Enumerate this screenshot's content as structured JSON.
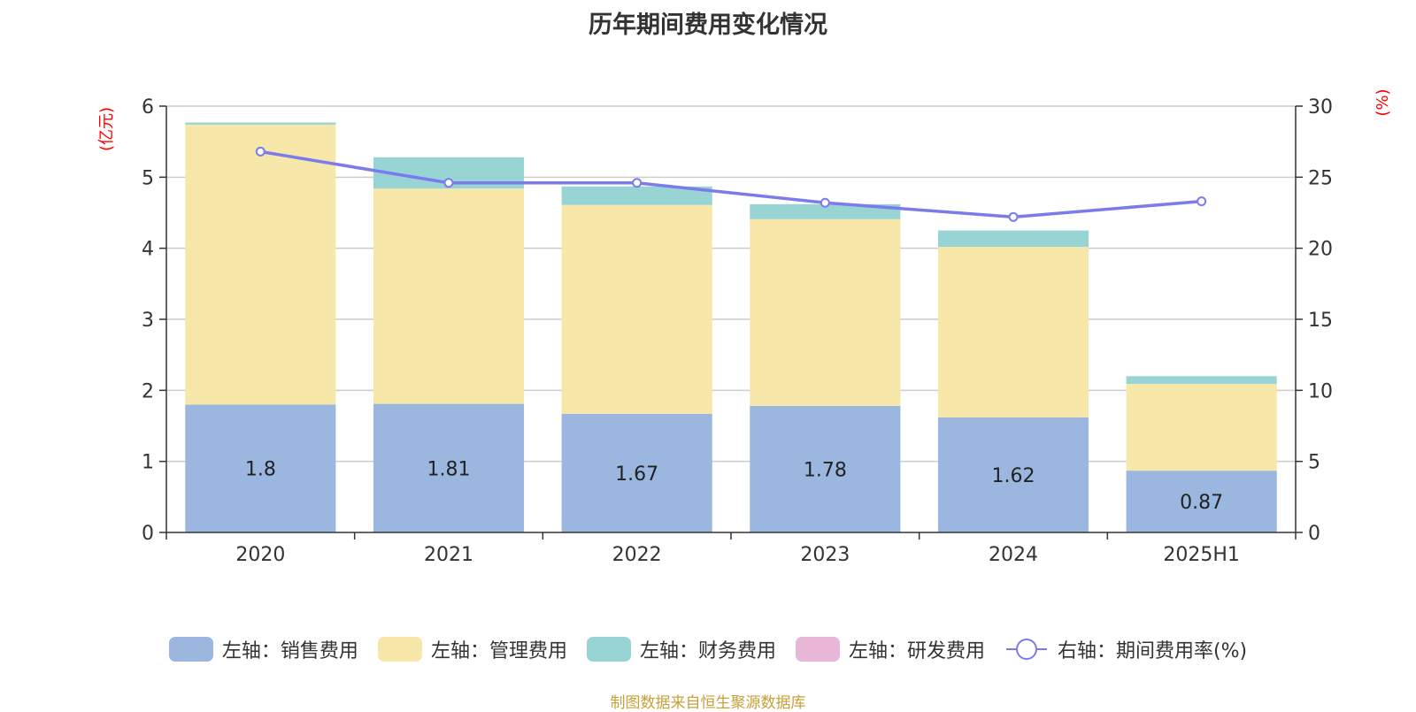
{
  "chart_data": {
    "type": "bar",
    "title": "历年期间费用变化情况",
    "categories": [
      "2020",
      "2021",
      "2022",
      "2023",
      "2024",
      "2025H1"
    ],
    "stacked": true,
    "ylabel_left": "(亿元)",
    "ylabel_right": "(%)",
    "ylim_left": [
      0,
      6
    ],
    "ylim_right": [
      0,
      30
    ],
    "yticks_left": [
      "0",
      "1",
      "2",
      "3",
      "4",
      "5",
      "6"
    ],
    "yticks_right": [
      "0",
      "5",
      "10",
      "15",
      "20",
      "25",
      "30"
    ],
    "grid": true,
    "series": [
      {
        "name": "左轴：销售费用",
        "type": "bar",
        "axis": "left",
        "color": "#9bb7e0",
        "values": [
          1.8,
          1.81,
          1.67,
          1.78,
          1.62,
          0.87
        ],
        "labels": [
          "1.8",
          "1.81",
          "1.67",
          "1.78",
          "1.62",
          "0.87"
        ]
      },
      {
        "name": "左轴：管理费用",
        "type": "bar",
        "axis": "left",
        "color": "#f7e7a9",
        "values": [
          3.94,
          3.03,
          2.94,
          2.63,
          2.4,
          1.22
        ]
      },
      {
        "name": "左轴：财务费用",
        "type": "bar",
        "axis": "left",
        "color": "#98d4d4",
        "values": [
          0.03,
          0.44,
          0.26,
          0.21,
          0.23,
          0.11
        ]
      },
      {
        "name": "左轴：研发费用",
        "type": "bar",
        "axis": "left",
        "color": "#e8b7d8",
        "values": [
          0,
          0,
          0,
          0,
          0,
          0
        ]
      },
      {
        "name": "右轴：期间费用率(%)",
        "type": "line",
        "axis": "right",
        "color": "#7b7bec",
        "values": [
          26.8,
          24.6,
          24.6,
          23.2,
          22.2,
          23.3
        ]
      }
    ],
    "legend_position": "bottom",
    "source_note": "制图数据来自恒生聚源数据库"
  }
}
